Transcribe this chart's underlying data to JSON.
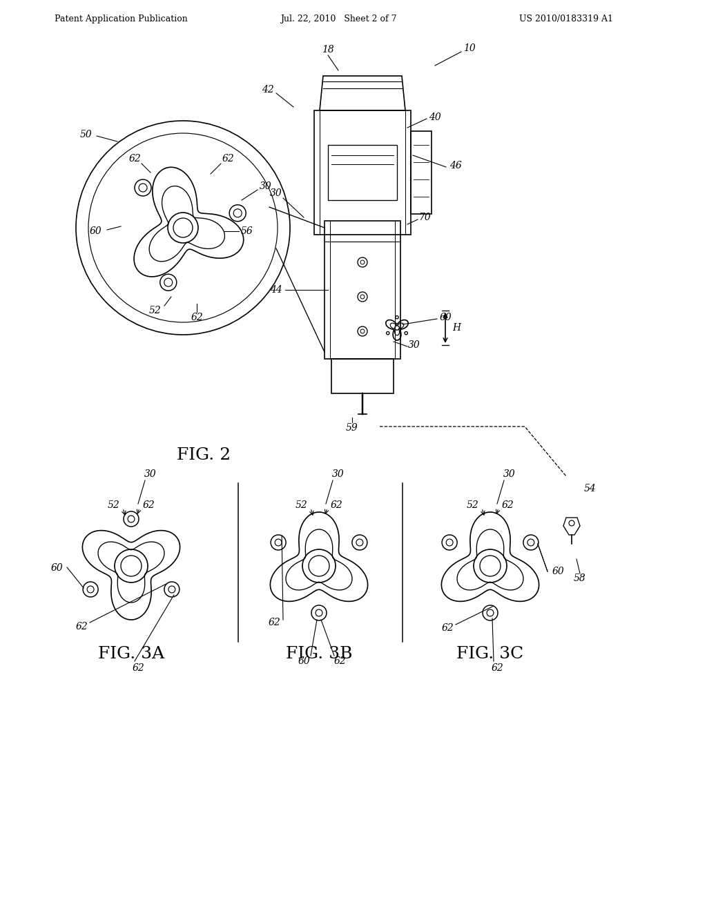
{
  "bg_color": "#ffffff",
  "header_left": "Patent Application Publication",
  "header_center": "Jul. 22, 2010   Sheet 2 of 7",
  "header_right": "US 2010/0183319 A1",
  "fig2_label": "FIG. 2",
  "fig3a_label": "FIG. 3A",
  "fig3b_label": "FIG. 3B",
  "fig3c_label": "FIG. 3C",
  "line_color": "#000000",
  "line_width": 1.2,
  "annotation_fontsize": 10,
  "label_fontsize": 18,
  "header_fontsize": 9
}
